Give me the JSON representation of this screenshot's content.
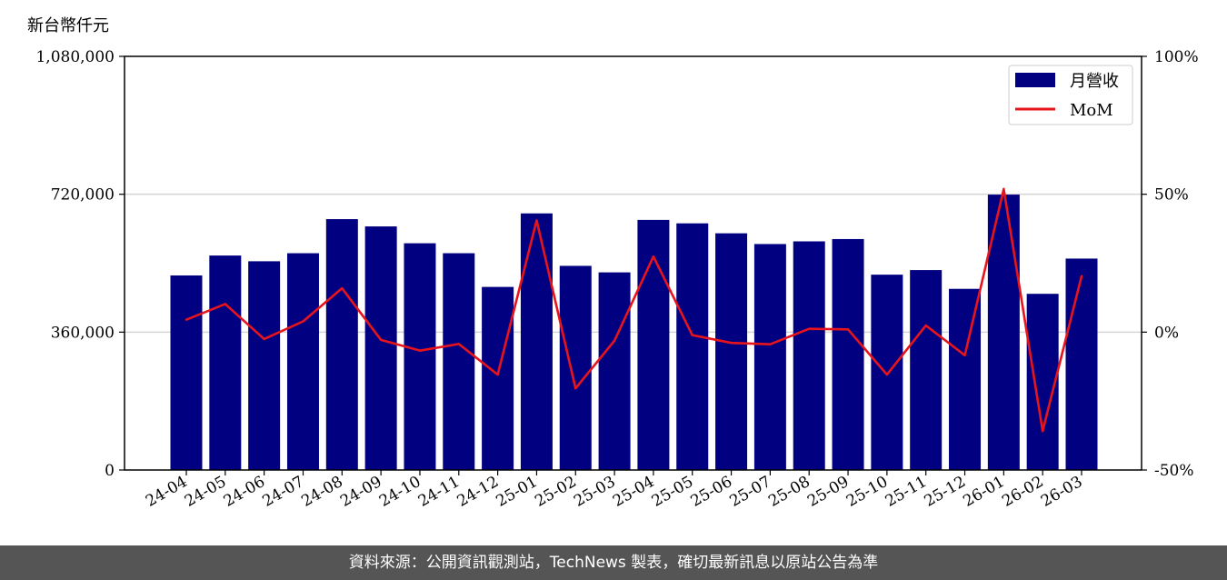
{
  "unit_label": "新台幣仟元",
  "footer": "資料來源：公開資訊觀測站，TechNews 製表，確切最新訊息以原站公告為準",
  "colors": {
    "bar": "#000080",
    "line": "#e8141c",
    "grid": "#d4d4d4",
    "footer_bg": "#555555"
  },
  "chart_data": {
    "type": "bar",
    "categories": [
      "24-04",
      "24-05",
      "24-06",
      "24-07",
      "24-08",
      "24-09",
      "24-10",
      "24-11",
      "24-12",
      "25-01",
      "25-02",
      "25-03",
      "25-04",
      "25-05",
      "25-06",
      "25-07",
      "25-08",
      "25-09",
      "25-10",
      "25-11",
      "25-12",
      "26-01",
      "26-02",
      "26-03"
    ],
    "series": [
      {
        "name": "月營收",
        "kind": "bar",
        "axis": "left",
        "values": [
          508000,
          560000,
          545000,
          566000,
          655000,
          636000,
          592000,
          566000,
          478000,
          670000,
          533000,
          516000,
          653000,
          644000,
          618000,
          590000,
          597000,
          603000,
          510000,
          522000,
          473000,
          719000,
          460000,
          552000
        ]
      },
      {
        "name": "MoM",
        "kind": "line",
        "axis": "right",
        "values": [
          4.5,
          10.2,
          -2.5,
          3.9,
          15.9,
          -2.8,
          -6.7,
          -4.3,
          -15.4,
          40.5,
          -20.4,
          -3.1,
          27.4,
          -1.1,
          -3.9,
          -4.4,
          1.2,
          1.0,
          -15.4,
          2.4,
          -8.4,
          51.9,
          -35.9,
          20.3
        ]
      }
    ],
    "yticks_left": [
      "0",
      "360,000",
      "720,000",
      "1,080,000"
    ],
    "yticks_right": [
      "-50%",
      "0%",
      "50%",
      "100%"
    ],
    "ylim_left": [
      0,
      1080000
    ],
    "ylim_right": [
      -50,
      100
    ],
    "grid": "horizontal",
    "legend_position": "top-right"
  }
}
